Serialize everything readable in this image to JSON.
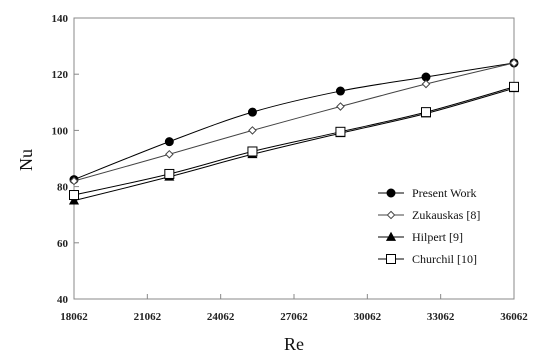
{
  "chart_data": {
    "type": "line",
    "xlabel": "Re",
    "ylabel": "Nu",
    "xlim": [
      18062,
      36062
    ],
    "ylim": [
      40,
      140
    ],
    "x_ticks": [
      18062,
      21062,
      24062,
      27062,
      30062,
      33062,
      36062
    ],
    "y_ticks": [
      40,
      60,
      80,
      100,
      120,
      140
    ],
    "x_tick_labels": [
      "18062",
      "21062",
      "24062",
      "27062",
      "30062",
      "33062",
      "36062"
    ],
    "y_tick_labels": [
      "40",
      "60",
      "80",
      "100",
      "120",
      "140"
    ],
    "grid": false,
    "legend_position": "bottom-right",
    "series": [
      {
        "name": "Present Work",
        "marker": "filled-circle",
        "color": "#000000",
        "x": [
          18062,
          21962,
          25362,
          28962,
          32462,
          36062
        ],
        "y": [
          82.5,
          96.0,
          106.5,
          114.0,
          119.0,
          124.0
        ]
      },
      {
        "name": "Zukauskas [8]",
        "marker": "open-diamond",
        "color": "#444444",
        "x": [
          18062,
          21962,
          25362,
          28962,
          32462,
          36062
        ],
        "y": [
          82.0,
          91.5,
          100.0,
          108.5,
          116.5,
          124.0
        ]
      },
      {
        "name": "Hilpert [9]",
        "marker": "filled-triangle",
        "color": "#000000",
        "x": [
          18062,
          21962,
          25362,
          28962,
          32462,
          36062
        ],
        "y": [
          75.0,
          83.5,
          91.5,
          99.0,
          106.0,
          115.0
        ]
      },
      {
        "name": "Churchil [10]",
        "marker": "open-square",
        "color": "#000000",
        "x": [
          18062,
          21962,
          25362,
          28962,
          32462,
          36062
        ],
        "y": [
          77.0,
          84.5,
          92.5,
          99.5,
          106.5,
          115.5
        ]
      }
    ]
  }
}
